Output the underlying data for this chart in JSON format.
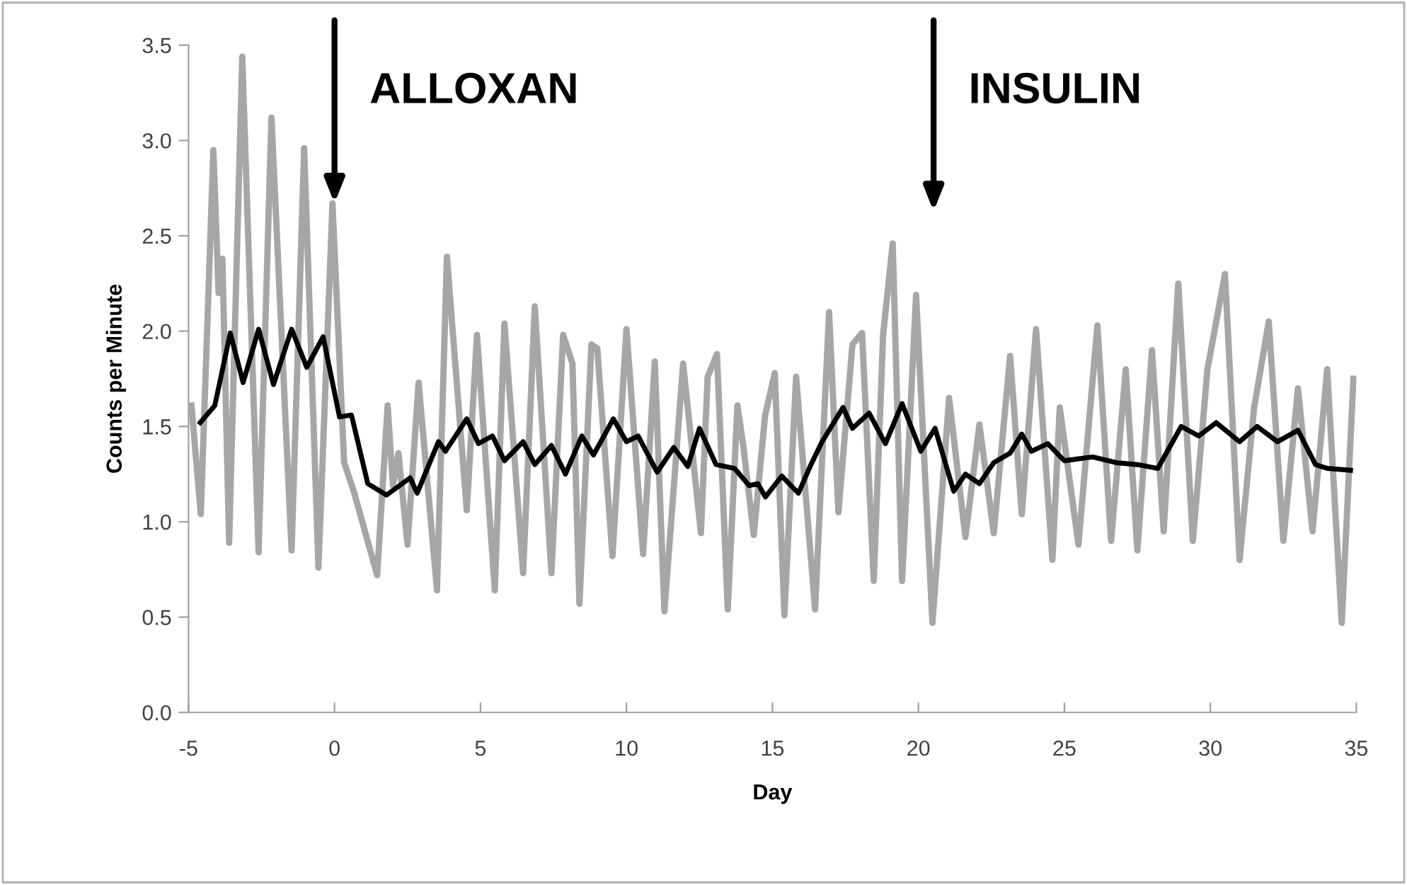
{
  "chart_data": {
    "type": "line",
    "xlabel": "Day",
    "ylabel": "Counts per Minute",
    "xlim": [
      -5,
      35
    ],
    "xticks": [
      -5,
      0,
      5,
      10,
      15,
      20,
      25,
      30,
      35
    ],
    "ylim": [
      0,
      3.5
    ],
    "yticks": [
      {
        "value": 0,
        "label": "0.0"
      },
      {
        "value": 0.5,
        "label": "0.5"
      },
      {
        "value": 1,
        "label": "1.0"
      },
      {
        "value": 1.5,
        "label": "1.5"
      },
      {
        "value": 2,
        "label": "2.0"
      },
      {
        "value": 2.5,
        "label": "2.5"
      },
      {
        "value": 3,
        "label": "3.0"
      },
      {
        "value": 3.5,
        "label": "3.5"
      }
    ],
    "grid": false,
    "legend": false,
    "marker": "none",
    "line_style": "solid",
    "series": [
      {
        "color": "#a6a6a6",
        "x": [
          -4.9,
          -4.58,
          -4.15,
          -3.97,
          -3.84,
          -3.61,
          -3.16,
          -2.6,
          -2.16,
          -1.47,
          -1.04,
          -0.55,
          -0.07,
          0.33,
          0.66,
          1.46,
          1.82,
          2.0,
          2.19,
          2.5,
          2.88,
          3.51,
          3.85,
          4.53,
          4.88,
          5.49,
          5.82,
          6.46,
          6.86,
          7.43,
          7.83,
          8.15,
          8.39,
          8.8,
          9.0,
          9.52,
          10.0,
          10.57,
          10.97,
          11.3,
          11.94,
          12.55,
          12.78,
          13.1,
          13.47,
          13.8,
          14.0,
          14.36,
          14.75,
          15.08,
          15.41,
          15.81,
          16.46,
          16.94,
          17.26,
          17.74,
          18.07,
          18.47,
          18.79,
          19.12,
          19.44,
          19.92,
          20.48,
          21.05,
          21.61,
          22.09,
          22.58,
          23.14,
          23.54,
          24.03,
          24.59,
          24.84,
          25.48,
          26.13,
          26.6,
          27.1,
          27.5,
          28.0,
          28.4,
          28.9,
          29.4,
          29.9,
          30.5,
          31.0,
          31.5,
          32.0,
          32.5,
          33.0,
          33.5,
          34.0,
          34.5,
          34.9
        ],
        "values": [
          1.61,
          1.04,
          2.95,
          2.2,
          2.38,
          0.89,
          3.44,
          0.84,
          3.12,
          0.85,
          2.96,
          0.76,
          2.67,
          1.31,
          1.16,
          0.72,
          1.61,
          1.19,
          1.36,
          0.88,
          1.73,
          0.64,
          2.39,
          1.06,
          1.98,
          0.64,
          2.04,
          0.73,
          2.13,
          0.73,
          1.98,
          1.83,
          0.57,
          1.93,
          1.91,
          0.82,
          2.01,
          0.83,
          1.84,
          0.53,
          1.83,
          0.94,
          1.76,
          1.88,
          0.54,
          1.61,
          1.4,
          0.93,
          1.56,
          1.78,
          0.51,
          1.76,
          0.54,
          2.1,
          1.05,
          1.93,
          1.99,
          0.69,
          1.98,
          2.46,
          0.69,
          2.19,
          0.47,
          1.65,
          0.92,
          1.51,
          0.94,
          1.87,
          1.04,
          2.01,
          0.8,
          1.6,
          0.88,
          2.03,
          0.9,
          1.8,
          0.85,
          1.9,
          0.95,
          2.25,
          0.9,
          1.8,
          2.3,
          0.8,
          1.6,
          2.05,
          0.9,
          1.7,
          0.95,
          1.8,
          0.47,
          1.75
        ]
      },
      {
        "color": "#000000",
        "x": [
          -4.6,
          -4.1,
          -3.57,
          -3.13,
          -2.6,
          -2.09,
          -1.47,
          -0.95,
          -0.39,
          0.17,
          0.58,
          1.14,
          1.78,
          2.59,
          2.83,
          3.56,
          3.8,
          4.53,
          4.93,
          5.41,
          5.82,
          6.46,
          6.86,
          7.43,
          7.91,
          8.47,
          8.87,
          9.55,
          10.0,
          10.4,
          11.05,
          11.62,
          12.1,
          12.5,
          13.07,
          13.7,
          14.2,
          14.5,
          14.76,
          15.32,
          15.89,
          16.29,
          16.7,
          17.42,
          17.74,
          18.31,
          18.87,
          19.44,
          20.08,
          20.57,
          21.21,
          21.61,
          22.09,
          22.58,
          23.14,
          23.54,
          23.87,
          24.43,
          25.0,
          25.97,
          26.77,
          27.5,
          28.2,
          29.0,
          29.6,
          30.2,
          31.0,
          31.6,
          32.3,
          33.0,
          33.6,
          34.0,
          34.8
        ],
        "values": [
          1.52,
          1.61,
          1.99,
          1.73,
          2.01,
          1.72,
          2.01,
          1.81,
          1.97,
          1.55,
          1.56,
          1.2,
          1.14,
          1.23,
          1.15,
          1.42,
          1.37,
          1.54,
          1.41,
          1.45,
          1.32,
          1.42,
          1.3,
          1.4,
          1.25,
          1.45,
          1.35,
          1.54,
          1.42,
          1.45,
          1.26,
          1.39,
          1.29,
          1.49,
          1.3,
          1.28,
          1.19,
          1.2,
          1.13,
          1.24,
          1.15,
          1.29,
          1.42,
          1.6,
          1.49,
          1.57,
          1.41,
          1.62,
          1.37,
          1.49,
          1.16,
          1.25,
          1.2,
          1.31,
          1.36,
          1.46,
          1.37,
          1.41,
          1.32,
          1.34,
          1.31,
          1.3,
          1.28,
          1.5,
          1.45,
          1.52,
          1.42,
          1.5,
          1.42,
          1.48,
          1.3,
          1.28,
          1.27
        ]
      }
    ],
    "annotations": [
      {
        "text": "ALLOXAN",
        "x": 0,
        "y": 2.65
      },
      "INSULIN"
    ]
  }
}
